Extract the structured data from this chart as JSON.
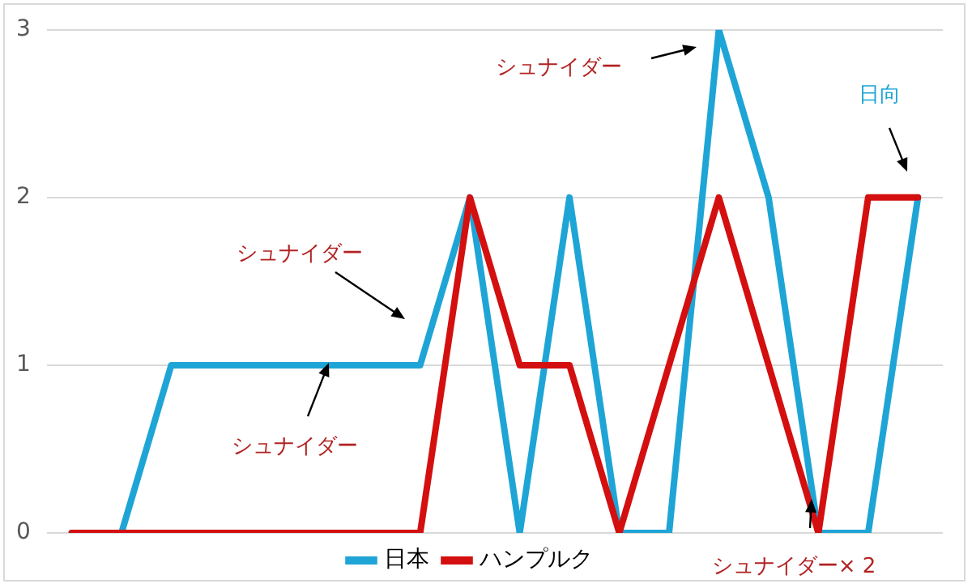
{
  "chart_data": {
    "type": "line",
    "categories": [
      null,
      null,
      null,
      null,
      null,
      null,
      null,
      null,
      null,
      null,
      null,
      null,
      null,
      null,
      null,
      null,
      null,
      null
    ],
    "series": [
      {
        "name": "日本",
        "color": "#1ea5d6",
        "values": [
          0,
          0,
          1,
          1,
          1,
          1,
          1,
          1,
          2,
          0,
          2,
          0,
          0,
          3,
          2,
          0,
          0,
          2
        ]
      },
      {
        "name": "ハンプルク",
        "color": "#d40f0f",
        "values": [
          0,
          0,
          0,
          0,
          0,
          0,
          0,
          0,
          2,
          1,
          1,
          0,
          1,
          2,
          1,
          0,
          2,
          2
        ]
      }
    ],
    "ylim": [
      0,
      3
    ],
    "yticks": [
      0,
      1,
      2,
      3
    ],
    "grid": "y",
    "legend": "bottom",
    "marker": "none",
    "line_style": "solid",
    "tick_labels": "y",
    "annotations": [
      "シュナイダー",
      "シュナイダー",
      "シュナイダー",
      "日向",
      "シュナイダー× 2"
    ]
  }
}
